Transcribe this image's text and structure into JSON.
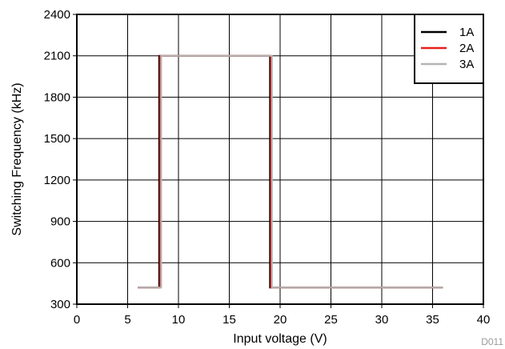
{
  "figure_id": "D011",
  "chart_data": {
    "type": "line",
    "title": "",
    "xlabel": "Input voltage (V)",
    "ylabel": "Switching Frequency (kHz)",
    "xlim": [
      0,
      40
    ],
    "ylim": [
      300,
      2400
    ],
    "x_ticks": [
      0,
      5,
      10,
      15,
      20,
      25,
      30,
      35,
      40
    ],
    "y_ticks": [
      300,
      600,
      900,
      1200,
      1500,
      1800,
      2100,
      2400
    ],
    "grid": true,
    "legend_position": "top-right",
    "series": [
      {
        "name": "1A",
        "color": "#000000",
        "x": [
          6,
          8.1,
          8.1,
          19,
          19,
          36
        ],
        "y": [
          420,
          420,
          2100,
          2100,
          420,
          420
        ]
      },
      {
        "name": "2A",
        "color": "#e8201e",
        "x": [
          6,
          8.2,
          8.2,
          19.1,
          19.1,
          36
        ],
        "y": [
          420,
          420,
          2100,
          2100,
          420,
          420
        ]
      },
      {
        "name": "3A",
        "color": "#b4b4b4",
        "x": [
          6,
          8.3,
          8.3,
          19.2,
          19.2,
          36
        ],
        "y": [
          420,
          420,
          2100,
          2100,
          420,
          420
        ]
      }
    ]
  }
}
